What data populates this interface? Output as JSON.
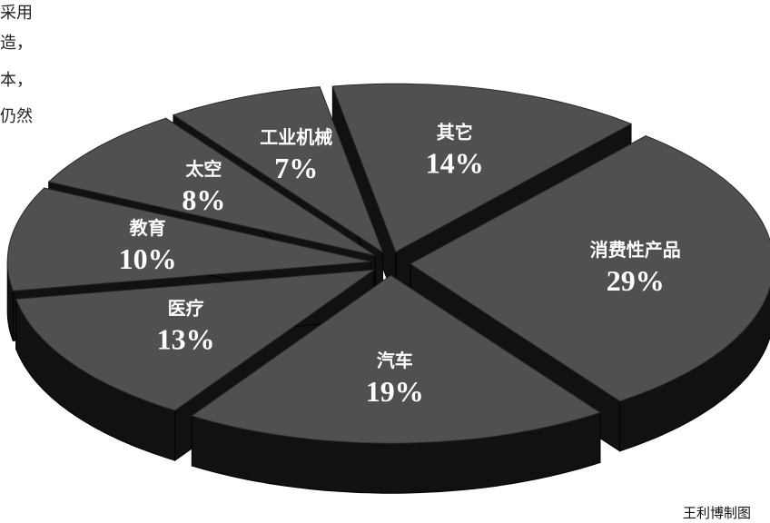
{
  "chart_data": {
    "type": "pie3d",
    "categories": [
      "其它",
      "消费性产品",
      "汽车",
      "医疗",
      "教育",
      "太空",
      "工业机械"
    ],
    "values": [
      14,
      29,
      19,
      13,
      10,
      8,
      7
    ],
    "value_labels": [
      "14%",
      "29%",
      "19%",
      "13%",
      "10%",
      "8%",
      "7%"
    ],
    "color": "#505050",
    "side_color": "#111111"
  },
  "side_text": [
    "采用",
    "造，",
    "本，",
    "仍然"
  ],
  "credit": "王利博制图"
}
